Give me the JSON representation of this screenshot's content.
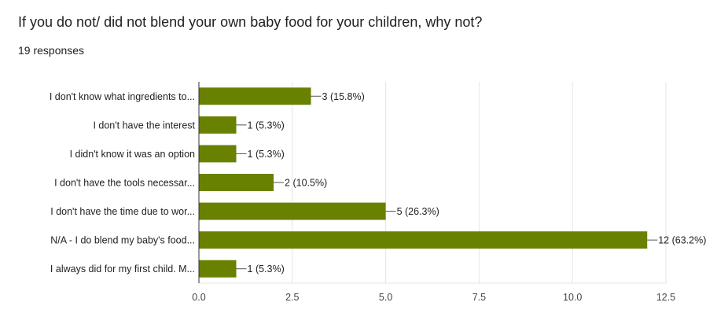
{
  "header": {
    "title": "If you do not/ did not blend your own baby food for your children, why not?",
    "responses": "19 responses"
  },
  "colors": {
    "bar": "#688100",
    "grid": "#e5e5e5",
    "axis": "#333333"
  },
  "chart_data": {
    "type": "bar",
    "orientation": "horizontal",
    "categories": [
      "I don't know what ingredients to...",
      "I don't have the interest",
      "I didn't know it was an option",
      "I don't have the tools necessar...",
      "I don't have the time due to wor...",
      "N/A - I do blend my baby's food...",
      "I always did for my first child. M..."
    ],
    "values": [
      3,
      1,
      1,
      2,
      5,
      12,
      1
    ],
    "data_labels": [
      "3 (15.8%)",
      "1 (5.3%)",
      "1 (5.3%)",
      "2 (10.5%)",
      "5 (26.3%)",
      "12 (63.2%)",
      "1 (5.3%)"
    ],
    "xlim": [
      0,
      12.5
    ],
    "xticks": [
      0,
      2.5,
      5,
      7.5,
      10,
      12.5
    ],
    "xtick_labels": [
      "0.0",
      "2.5",
      "5.0",
      "7.5",
      "10.0",
      "12.5"
    ],
    "grid": true,
    "legend": "none"
  }
}
